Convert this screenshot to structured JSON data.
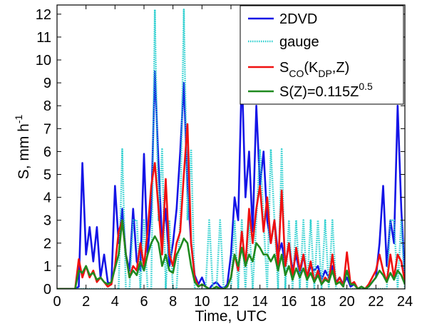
{
  "chart_data": {
    "type": "line",
    "xlabel": "Time, UTC",
    "ylabel": [
      {
        "text": "S, mm h"
      },
      {
        "text": "-1",
        "style": "sup"
      }
    ],
    "xlim": [
      0,
      24
    ],
    "ylim": [
      0,
      12.4
    ],
    "xticks": [
      0,
      2,
      4,
      6,
      8,
      10,
      12,
      14,
      16,
      18,
      20,
      22,
      24
    ],
    "yticks": [
      0,
      1,
      2,
      3,
      4,
      5,
      6,
      7,
      8,
      9,
      10,
      11,
      12
    ],
    "grid": false,
    "legend": "upper right",
    "x": [
      0,
      0.25,
      0.5,
      0.75,
      1,
      1.25,
      1.5,
      1.75,
      2,
      2.25,
      2.5,
      2.75,
      3,
      3.25,
      3.5,
      3.75,
      4,
      4.25,
      4.5,
      4.75,
      5,
      5.25,
      5.5,
      5.75,
      6,
      6.25,
      6.5,
      6.75,
      7,
      7.25,
      7.5,
      7.75,
      8,
      8.25,
      8.5,
      8.75,
      9,
      9.25,
      9.5,
      9.75,
      10,
      10.25,
      10.5,
      10.75,
      11,
      11.25,
      11.5,
      11.75,
      12,
      12.25,
      12.5,
      12.75,
      13,
      13.25,
      13.5,
      13.75,
      14,
      14.25,
      14.5,
      14.75,
      15,
      15.25,
      15.5,
      15.75,
      16,
      16.25,
      16.5,
      16.75,
      17,
      17.25,
      17.5,
      17.75,
      18,
      18.25,
      18.5,
      18.75,
      19,
      19.25,
      19.5,
      19.75,
      20,
      20.25,
      20.5,
      20.75,
      21,
      21.25,
      21.5,
      21.75,
      22,
      22.25,
      22.5,
      22.75,
      23,
      23.25,
      23.5,
      23.75,
      24
    ],
    "series": [
      {
        "name": [
          {
            "text": "2DVD"
          }
        ],
        "color": "#1414e6",
        "dash": "solid",
        "values": [
          0,
          0,
          0,
          0,
          0,
          0,
          0.1,
          5.5,
          1.5,
          2.7,
          1.2,
          2.7,
          0.5,
          1.5,
          0.3,
          0.2,
          4.5,
          2.0,
          3.5,
          1.5,
          0.8,
          3.5,
          1.2,
          0.8,
          5.9,
          1.5,
          3.5,
          9.5,
          5.5,
          2.0,
          3.5,
          1.0,
          2.0,
          3.5,
          6.0,
          9.0,
          4.5,
          2.0,
          0.6,
          0.2,
          0.5,
          0.1,
          0,
          0.2,
          0.3,
          0.1,
          0,
          0.2,
          1.5,
          4.0,
          3.0,
          9.5,
          4.0,
          6.0,
          2.5,
          8.0,
          4.5,
          6.0,
          3.0,
          2.0,
          3.0,
          1.5,
          2.0,
          1.0,
          2.0,
          0.8,
          1.5,
          0.6,
          1.5,
          0.5,
          1.0,
          0.8,
          1.0,
          0.4,
          0.8,
          0.5,
          1.0,
          0.3,
          0.5,
          0.2,
          0.5,
          0.1,
          0.2,
          0,
          0.1,
          0,
          0.1,
          0.3,
          0.5,
          2.0,
          4.5,
          1.0,
          3.0,
          2.0,
          8.0,
          3.5,
          0.5
        ]
      },
      {
        "name": [
          {
            "text": "gauge"
          }
        ],
        "color": "#2ccfcf",
        "dash": "dotted",
        "values": [
          0,
          0,
          0,
          0,
          0,
          0,
          0,
          0,
          0,
          0,
          0,
          0,
          0,
          0,
          0,
          0,
          0,
          0,
          6.1,
          0,
          0,
          3,
          3,
          0,
          3,
          0,
          0,
          12.2,
          3,
          6.1,
          0,
          3,
          0,
          0,
          3,
          12.2,
          3,
          6.1,
          0,
          0,
          0,
          0,
          3,
          0,
          0,
          3,
          0,
          0,
          0,
          3,
          0,
          3,
          0,
          3,
          0,
          3,
          6.1,
          3,
          0,
          6.1,
          3,
          0,
          6.1,
          0,
          3,
          0,
          3,
          0,
          3,
          0,
          3,
          0,
          3,
          0,
          3,
          0,
          3,
          0,
          0,
          0,
          0,
          0,
          0,
          0,
          0,
          0,
          0,
          0,
          0,
          0,
          0,
          0,
          3,
          3,
          0,
          3,
          0
        ]
      },
      {
        "name": [
          {
            "text": "S"
          },
          {
            "text": "CO",
            "style": "sub"
          },
          {
            "text": "(K"
          },
          {
            "text": "DP",
            "style": "sub"
          },
          {
            "text": ",Z)"
          }
        ],
        "color": "#f01010",
        "dash": "solid",
        "values": [
          0,
          0,
          0,
          0,
          0,
          0,
          1.3,
          0.5,
          1.0,
          0.5,
          0.8,
          0.3,
          0.5,
          0.3,
          0.1,
          0.2,
          1.0,
          2.5,
          3.0,
          1.5,
          0.5,
          1.0,
          0.8,
          2.0,
          1.0,
          2.5,
          4.5,
          5.5,
          3.5,
          1.5,
          4.8,
          1.5,
          1.0,
          2.0,
          2.5,
          5.0,
          7.2,
          2.0,
          0.5,
          0.1,
          0.2,
          0.1,
          0,
          0,
          0.1,
          0,
          0,
          0.1,
          0.5,
          1.5,
          0.8,
          2.5,
          1.0,
          3.5,
          2.0,
          3.5,
          4.5,
          2.5,
          4.0,
          2.0,
          3.0,
          1.0,
          4.3,
          1.0,
          2.0,
          0.5,
          1.8,
          0.8,
          1.5,
          0.5,
          1.2,
          0.3,
          0.8,
          0.2,
          0.5,
          0.3,
          1.5,
          0.2,
          0.5,
          0.1,
          1.6,
          0.2,
          0.3,
          0,
          0.1,
          0,
          0.2,
          0.5,
          0.8,
          1.5,
          0.8,
          0.3,
          1.5,
          0.5,
          1.5,
          1.2,
          0.3
        ]
      },
      {
        "name": [
          {
            "text": "S(Z)=0.115Z"
          },
          {
            "text": "0.5",
            "style": "sup"
          }
        ],
        "color": "#1f8a1f",
        "dash": "solid",
        "values": [
          0,
          0,
          0,
          0,
          0,
          0,
          0.8,
          0.7,
          1.0,
          0.6,
          0.7,
          0.4,
          0.5,
          0.3,
          0.2,
          0.3,
          0.9,
          1.5,
          3.0,
          1.5,
          0.5,
          0.8,
          0.6,
          1.2,
          0.8,
          1.5,
          2.0,
          2.3,
          2.0,
          1.0,
          1.5,
          0.8,
          0.7,
          1.5,
          1.8,
          2.2,
          2.0,
          1.0,
          0.3,
          0.1,
          0.2,
          0.1,
          0,
          0,
          0.1,
          0,
          0,
          0.1,
          0.5,
          1.5,
          1.0,
          1.8,
          1.0,
          1.5,
          1.2,
          2.0,
          1.8,
          1.5,
          1.5,
          1.2,
          1.5,
          0.8,
          1.5,
          0.6,
          1.0,
          0.4,
          0.9,
          0.5,
          0.9,
          0.4,
          0.7,
          0.3,
          0.6,
          0.2,
          0.4,
          0.3,
          0.8,
          0.2,
          0.3,
          0.1,
          0.8,
          0.2,
          0.2,
          0,
          0.1,
          0,
          0.1,
          0.3,
          0.5,
          0.8,
          0.6,
          0.3,
          0.7,
          0.4,
          0.8,
          0.6,
          0.2
        ]
      }
    ]
  }
}
